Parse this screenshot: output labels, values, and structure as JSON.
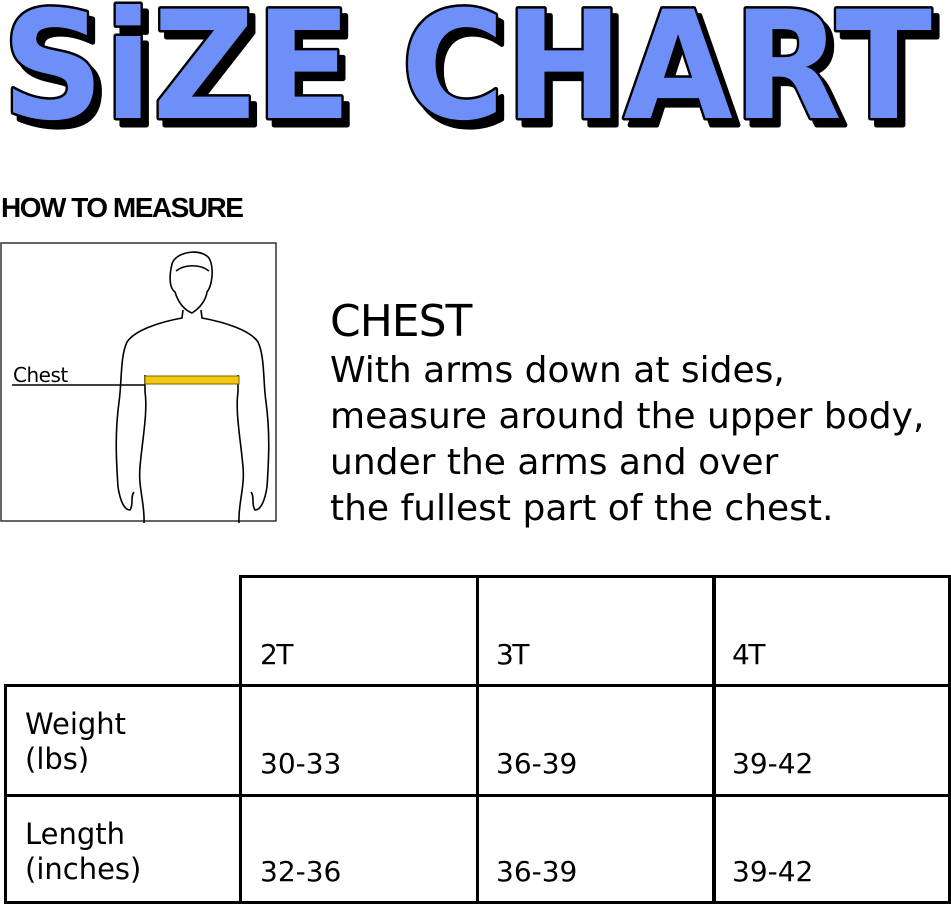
{
  "title": "SiZE CHART",
  "title_color": "#6E8FF8",
  "how_to_measure": "HOW TO MEASURE",
  "figure": {
    "label": "Chest",
    "tape_color": "#F2C811"
  },
  "chest": {
    "heading": "CHEST",
    "lines": [
      "With arms down at sides,",
      "measure around the upper body,",
      "under the arms and over",
      "the fullest part of the chest."
    ]
  },
  "table": {
    "columns": [
      "2T",
      "3T",
      "4T"
    ],
    "rows": [
      {
        "label_lines": [
          "Weight",
          "(lbs)"
        ],
        "values": [
          "30-33",
          "36-39",
          "39-42"
        ]
      },
      {
        "label_lines": [
          "Length",
          "(inches)"
        ],
        "values": [
          "32-36",
          "36-39",
          "39-42"
        ]
      }
    ]
  }
}
